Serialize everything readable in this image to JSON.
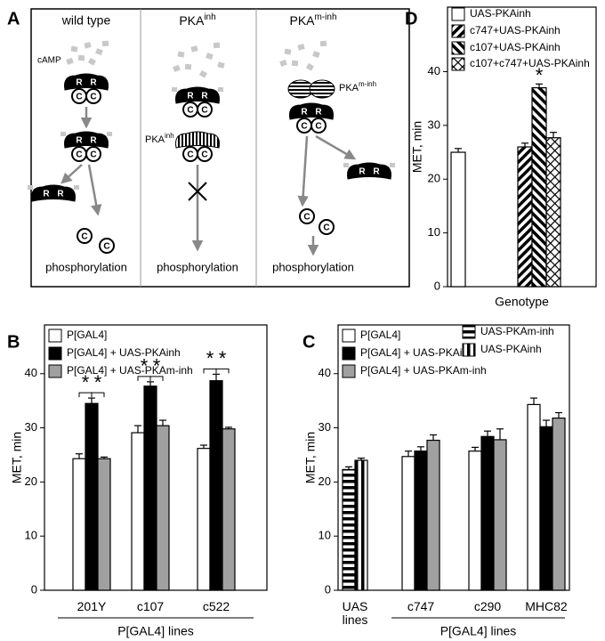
{
  "diagram": {
    "panel": "A",
    "columns": [
      {
        "title": "wild type"
      },
      {
        "title": "PKA",
        "title_sup": "inh"
      },
      {
        "title": "PKA",
        "title_sup": "m-inh"
      }
    ],
    "camp": "cAMP",
    "regulatory": "R",
    "catalytic": "C",
    "inhibitor_labels": [
      {
        "text": "PKA",
        "sup": "inh"
      },
      {
        "text": "PKA",
        "sup": "m-inh"
      }
    ],
    "output": "phosphorylation"
  },
  "chart_data": [
    {
      "panel": "B",
      "type": "bar",
      "ylabel": "MET, min",
      "xlabel": "P[GAL4] lines",
      "categories": [
        "201Y",
        "c107",
        "c522"
      ],
      "series": [
        {
          "name": "P[GAL4]",
          "color": "#ffffff",
          "values": [
            24.3,
            29.1,
            26.2
          ],
          "errors": [
            0.9,
            1.3,
            0.6
          ]
        },
        {
          "name": "P[GAL4] + UAS-PKAinh",
          "color": "#000000",
          "values": [
            34.5,
            37.7,
            38.7
          ],
          "errors": [
            1,
            0.8,
            1.2
          ]
        },
        {
          "name": "P[GAL4] + UAS-PKAm-inh",
          "color": "#a0a0a0",
          "values": [
            24.3,
            30.4,
            29.8
          ],
          "errors": [
            0.3,
            1,
            0.3
          ]
        }
      ],
      "ylim": [
        0,
        49
      ],
      "yticks": [
        0,
        10,
        20,
        30,
        40
      ],
      "legend": "upper left",
      "significance_marker": "*"
    },
    {
      "panel": "C",
      "type": "bar",
      "ylabel": "MET, min",
      "xlabel": "P[GAL4] lines",
      "categories": [
        "UAS lines",
        "c747",
        "c290",
        "MHC82"
      ],
      "series": [
        {
          "name": "P[GAL4]",
          "color": "#ffffff",
          "values": [
            null,
            24.7,
            25.7,
            34.3
          ],
          "errors": [
            null,
            1,
            0.7,
            1.2
          ]
        },
        {
          "name": "P[GAL4] + UAS-PKAinh",
          "color": "#000000",
          "values": [
            null,
            25.7,
            28.4,
            30.2
          ],
          "errors": [
            null,
            0.8,
            1,
            1.2
          ]
        },
        {
          "name": "P[GAL4] + UAS-PKAm-inh",
          "color": "#a0a0a0",
          "values": [
            null,
            27.7,
            27.8,
            31.8
          ],
          "errors": [
            null,
            1,
            2,
            1
          ]
        },
        {
          "name": "UAS-PKAm-inh",
          "color": "#000000",
          "pattern": "horizontal",
          "values": [
            22.3,
            null,
            null,
            null
          ],
          "errors": [
            0.5,
            null,
            null,
            null
          ]
        },
        {
          "name": "UAS-PKAinh",
          "color": "#000000",
          "pattern": "vertical",
          "values": [
            24,
            null,
            null,
            null
          ],
          "errors": [
            0.4,
            null,
            null,
            null
          ]
        }
      ],
      "ylim": [
        0,
        49
      ],
      "yticks": [
        0,
        10,
        20,
        30,
        40
      ],
      "legend": "upper left"
    },
    {
      "panel": "D",
      "type": "bar",
      "ylabel": "MET, min",
      "xlabel": "Genotype",
      "categories": [
        null,
        null
      ],
      "series": [
        {
          "name": "UAS-PKAinh",
          "color": "#ffffff",
          "values": [
            25,
            null
          ],
          "errors": [
            0.7,
            null
          ]
        },
        {
          "name": "c747+UAS-PKAinh",
          "color": "#000000",
          "pattern": "diagonal-up",
          "values": [
            null,
            26
          ],
          "errors": [
            null,
            0.7
          ]
        },
        {
          "name": "c107+UAS-PKAinh",
          "color": "#000000",
          "pattern": "diagonal-down",
          "values": [
            null,
            37
          ],
          "errors": [
            null,
            0.7
          ]
        },
        {
          "name": "c107+c747+UAS-PKAinh",
          "color": "#000000",
          "pattern": "crosshatch",
          "values": [
            null,
            27.7
          ],
          "errors": [
            null,
            1
          ]
        }
      ],
      "ylim": [
        0,
        52
      ],
      "yticks": [
        0,
        10,
        20,
        30,
        40
      ],
      "legend": "upper left",
      "significance_marker": "*"
    }
  ]
}
